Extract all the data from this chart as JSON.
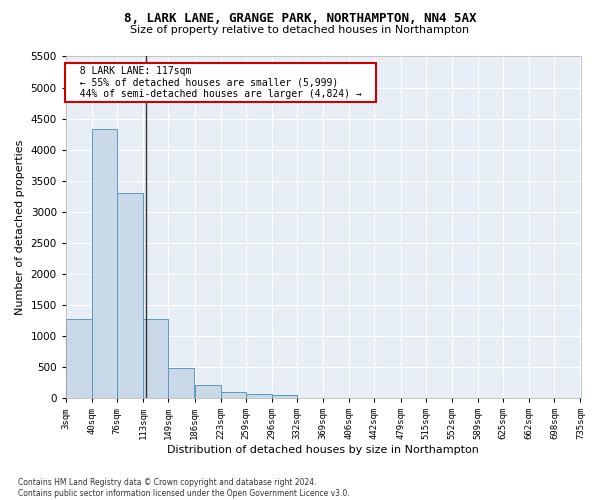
{
  "title_line1": "8, LARK LANE, GRANGE PARK, NORTHAMPTON, NN4 5AX",
  "title_line2": "Size of property relative to detached houses in Northampton",
  "xlabel": "Distribution of detached houses by size in Northampton",
  "ylabel": "Number of detached properties",
  "footnote": "Contains HM Land Registry data © Crown copyright and database right 2024.\nContains public sector information licensed under the Open Government Licence v3.0.",
  "annotation_title": "8 LARK LANE: 117sqm",
  "annotation_line1": "← 55% of detached houses are smaller (5,999)",
  "annotation_line2": "44% of semi-detached houses are larger (4,824) →",
  "property_size": 117,
  "bar_color": "#c9d9e8",
  "bar_edge_color": "#5a9abf",
  "annotation_box_color": "#ffffff",
  "annotation_box_edge": "#cc0000",
  "background_color": "#e8eef5",
  "bins": [
    3,
    40,
    76,
    113,
    149,
    186,
    223,
    259,
    296,
    332,
    369,
    406,
    442,
    479,
    515,
    552,
    589,
    625,
    662,
    698,
    735
  ],
  "counts": [
    1270,
    4330,
    3300,
    1280,
    490,
    220,
    95,
    65,
    55,
    0,
    0,
    0,
    0,
    0,
    0,
    0,
    0,
    0,
    0,
    0
  ],
  "ylim": [
    0,
    5500
  ],
  "yticks": [
    0,
    500,
    1000,
    1500,
    2000,
    2500,
    3000,
    3500,
    4000,
    4500,
    5000,
    5500
  ],
  "title1_fontsize": 9,
  "title2_fontsize": 8,
  "xlabel_fontsize": 8,
  "ylabel_fontsize": 8,
  "xtick_fontsize": 6.5,
  "ytick_fontsize": 7.5,
  "footnote_fontsize": 5.5
}
